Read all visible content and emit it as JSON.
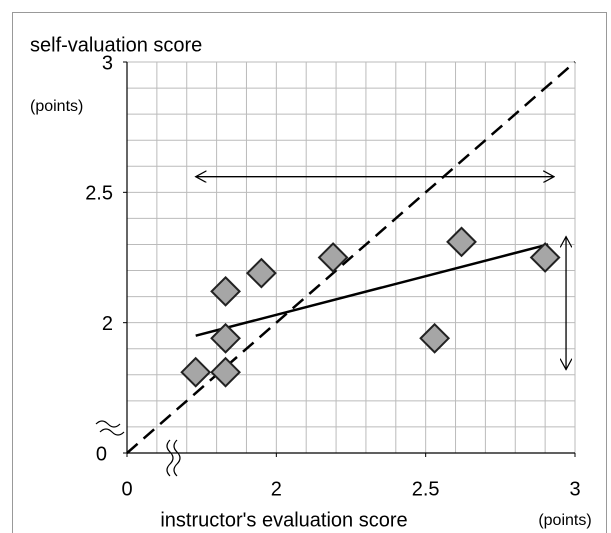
{
  "chart_data": {
    "type": "scatter",
    "y_label": "self-valuation score",
    "y_unit": "(points)",
    "x_label": "instructor's evaluation score",
    "x_unit": "(points)",
    "x": [
      1.73,
      1.83,
      1.83,
      1.83,
      1.95,
      2.19,
      2.53,
      2.62,
      2.9
    ],
    "values": [
      1.81,
      1.81,
      1.94,
      2.12,
      2.19,
      2.25,
      1.94,
      2.31,
      2.25
    ],
    "color": "#a6a6a6",
    "xlim": [
      1.5,
      3
    ],
    "ylim": [
      1.5,
      3
    ],
    "xticks": [
      0,
      2,
      2.5,
      3
    ],
    "yticks": [
      0,
      2,
      2.5,
      3
    ],
    "axis_break": true,
    "grid": true,
    "grid_step": 0.1,
    "lines": [
      {
        "style": "dashed",
        "x": [
          1.5,
          3
        ],
        "y": [
          1.5,
          3
        ]
      },
      {
        "style": "solid",
        "x": [
          1.73,
          2.91
        ],
        "y": [
          1.95,
          2.3
        ]
      }
    ],
    "arrows": [
      {
        "x": [
          1.73,
          2.93
        ],
        "y": [
          2.56,
          2.56
        ]
      },
      {
        "x": [
          2.97,
          2.97
        ],
        "y": [
          2.33,
          1.82
        ]
      }
    ]
  }
}
